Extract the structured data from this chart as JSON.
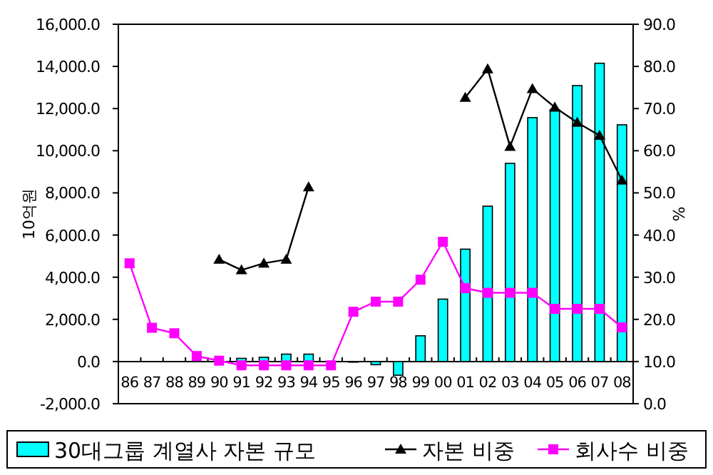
{
  "chart_data": {
    "type": "bar",
    "categories": [
      "86",
      "87",
      "88",
      "89",
      "90",
      "91",
      "92",
      "93",
      "94",
      "95",
      "96",
      "97",
      "98",
      "99",
      "00",
      "01",
      "02",
      "03",
      "04",
      "05",
      "06",
      "07",
      "08"
    ],
    "series": [
      {
        "name": "30대그룹 계열사 자본 규모",
        "color": "#00ffff",
        "values": [
          0,
          0,
          0,
          null,
          null,
          150,
          200,
          350,
          350,
          0,
          -30,
          -150,
          -650,
          1220,
          2960,
          5330,
          7370,
          9400,
          11570,
          11950,
          13090,
          14150,
          11230
        ]
      },
      {
        "name": "자본 비중",
        "type": "line",
        "axis": "y2",
        "color": "#000000",
        "marker": "triangle",
        "values": [
          null,
          null,
          null,
          null,
          34.2,
          31.7,
          33.3,
          34.2,
          51.4,
          null,
          null,
          null,
          null,
          null,
          null,
          72.6,
          79.4,
          61.0,
          74.7,
          70.3,
          66.7,
          63.6,
          53.0
        ]
      },
      {
        "name": "회사수 비중",
        "type": "line",
        "axis": "y2",
        "color": "#ff00ff",
        "marker": "square",
        "values": [
          33.3,
          18.0,
          16.7,
          11.3,
          10.2,
          9.1,
          9.1,
          9.1,
          9.1,
          9.1,
          21.8,
          24.2,
          24.2,
          29.4,
          38.4,
          27.4,
          26.3,
          26.3,
          26.3,
          22.5,
          22.5,
          22.5,
          18.1
        ]
      }
    ],
    "ylabel": "10억원",
    "y2label": "%",
    "ylim": [
      -2000,
      16000
    ],
    "yticks": [
      {
        "value": -2000,
        "label": "-2,000.0"
      },
      {
        "value": 0,
        "label": "0.0"
      },
      {
        "value": 2000,
        "label": "2,000.0"
      },
      {
        "value": 4000,
        "label": "4,000.0"
      },
      {
        "value": 6000,
        "label": "6,000.0"
      },
      {
        "value": 8000,
        "label": "8,000.0"
      },
      {
        "value": 10000,
        "label": "10,000.0"
      },
      {
        "value": 12000,
        "label": "12,000.0"
      },
      {
        "value": 14000,
        "label": "14,000.0"
      },
      {
        "value": 16000,
        "label": "16,000.0"
      }
    ],
    "y2lim": [
      0,
      90
    ],
    "y2ticks": [
      {
        "value": 0,
        "label": "0.0"
      },
      {
        "value": 10,
        "label": "10.0"
      },
      {
        "value": 20,
        "label": "20.0"
      },
      {
        "value": 30,
        "label": "30.0"
      },
      {
        "value": 40,
        "label": "40.0"
      },
      {
        "value": 50,
        "label": "50.0"
      },
      {
        "value": 60,
        "label": "60.0"
      },
      {
        "value": 70,
        "label": "70.0"
      },
      {
        "value": 80,
        "label": "80.0"
      },
      {
        "value": 90,
        "label": "90.0"
      }
    ],
    "legend": "bottom",
    "grid": false
  }
}
